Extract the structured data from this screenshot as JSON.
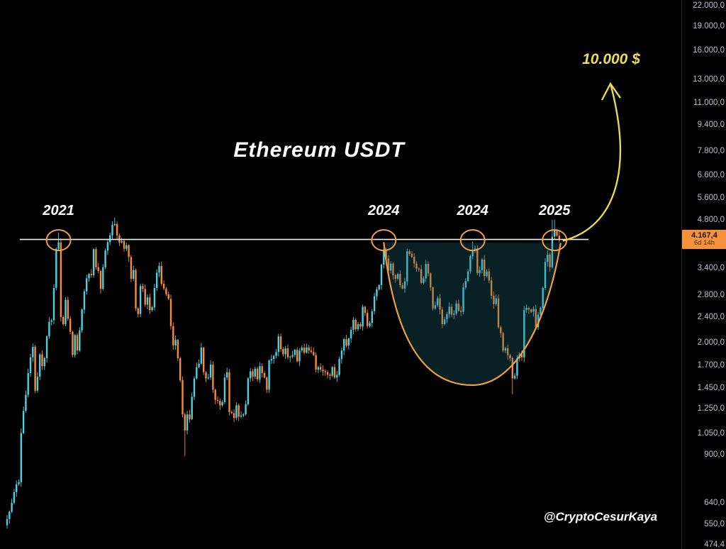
{
  "title": "Ethereum USDT",
  "target_label": "10.000 $",
  "watermark": "@CryptoCesurKaya",
  "price_axis": {
    "ticks": [
      {
        "value": 22000,
        "label": "22.000,0"
      },
      {
        "value": 19000,
        "label": "19.000,0"
      },
      {
        "value": 16000,
        "label": "16.000,0"
      },
      {
        "value": 13000,
        "label": "13.000,0"
      },
      {
        "value": 11000,
        "label": "11.000,0"
      },
      {
        "value": 9400,
        "label": "9.400,0"
      },
      {
        "value": 7800,
        "label": "7.800,0"
      },
      {
        "value": 6600,
        "label": "6.600,0"
      },
      {
        "value": 5600,
        "label": "5.600,0"
      },
      {
        "value": 4800,
        "label": "4.800,0"
      },
      {
        "value": 3400,
        "label": "3.400,0"
      },
      {
        "value": 2800,
        "label": "2.800,0"
      },
      {
        "value": 2400,
        "label": "2.400,0"
      },
      {
        "value": 2000,
        "label": "2.000,0"
      },
      {
        "value": 1700,
        "label": "1.700,0"
      },
      {
        "value": 1450,
        "label": "1.450,0"
      },
      {
        "value": 1250,
        "label": "1.250,0"
      },
      {
        "value": 1050,
        "label": "1.050,0"
      },
      {
        "value": 900,
        "label": "900,0"
      },
      {
        "value": 640,
        "label": "640,0"
      },
      {
        "value": 550,
        "label": "550,0"
      },
      {
        "value": 474.4,
        "label": "474,4"
      }
    ],
    "current": {
      "value": 4167.4,
      "label": "4.167,4",
      "countdown": "6d 14h",
      "bg": "#f7923a"
    }
  },
  "chart_data": {
    "type": "candlestick",
    "title": "Ethereum USDT",
    "scale": "logarithmic",
    "grid": false,
    "y_range": [
      474.4,
      22000
    ],
    "resistance_level": 4167.4,
    "up_color": "#4fd0e0",
    "down_color": "#f78a3c",
    "annotation_color": "#ef9f43",
    "arrow_color": "#e8d94a",
    "line_color": "#f0f0f0",
    "first_open": 545,
    "closes": [
      570,
      600,
      640,
      690,
      730,
      740,
      1050,
      1230,
      1380,
      1610,
      1800,
      1940,
      1420,
      1570,
      1840,
      1690,
      1790,
      2090,
      2320,
      2345,
      2950,
      3900,
      4080,
      2400,
      2280,
      2710,
      2370,
      2160,
      1830,
      2110,
      1890,
      2180,
      2530,
      2880,
      3160,
      3260,
      3230,
      3890,
      3420,
      3330,
      2930,
      3420,
      3850,
      4090,
      4290,
      4620,
      4650,
      4290,
      4080,
      4120,
      3900,
      4000,
      3680,
      3150,
      3350,
      2550,
      2450,
      2990,
      2930,
      2620,
      2760,
      2520,
      2570,
      2950,
      3290,
      3450,
      3040,
      2940,
      2820,
      2730,
      2250,
      1960,
      2040,
      1790,
      1530,
      1200,
      1070,
      1200,
      1160,
      1360,
      1550,
      1680,
      1720,
      1930,
      1620,
      1550,
      1560,
      1710,
      1430,
      1330,
      1320,
      1280,
      1310,
      1560,
      1620,
      1220,
      1210,
      1170,
      1280,
      1180,
      1190,
      1200,
      1290,
      1550,
      1630,
      1570,
      1660,
      1540,
      1690,
      1610,
      1560,
      1430,
      1760,
      1780,
      1820,
      1870,
      2090,
      1910,
      1840,
      1920,
      1800,
      1810,
      1830,
      1900,
      1750,
      1890,
      1930,
      1860,
      1930,
      1890,
      1870,
      1830,
      1650,
      1680,
      1650,
      1630,
      1620,
      1590,
      1580,
      1680,
      1560,
      1590,
      1780,
      1890,
      2050,
      1960,
      2060,
      2190,
      2350,
      2200,
      2280,
      2240,
      2580,
      2470,
      2250,
      2300,
      2500,
      2780,
      2920,
      3010,
      3480,
      3880,
      3640,
      3340,
      3510,
      3230,
      3150,
      3260,
      3010,
      2940,
      3090,
      3830,
      3760,
      3680,
      3510,
      3390,
      3370,
      3060,
      3160,
      3500,
      3270,
      2960,
      2550,
      2610,
      2740,
      2530,
      2280,
      2360,
      2450,
      2580,
      2440,
      2460,
      2640,
      2510,
      2490,
      2960,
      3100,
      3320,
      3700,
      3860,
      3910,
      3280,
      3350,
      3610,
      3210,
      3320,
      3110,
      2790,
      2630,
      2740,
      2230,
      2140,
      1890,
      1920,
      1830,
      1790,
      1550,
      1580,
      1790,
      1840,
      1800,
      2520,
      2560,
      2530,
      2490,
      2540,
      2230,
      2440,
      2560,
      2950,
      3550,
      3740,
      3420,
      4250,
      4450,
      4280,
      4167.4
    ],
    "high_overrides": {
      "22": 4380,
      "46": 4870,
      "161": 4093,
      "199": 4107,
      "233": 4790,
      "234": 4800,
      "236": 4460
    },
    "low_overrides": {
      "76": 890,
      "216": 1385
    },
    "circles": [
      {
        "index": 22,
        "label": "2021"
      },
      {
        "index": 161,
        "label": "2024"
      },
      {
        "index": 199,
        "label": "2024"
      },
      {
        "index": 234,
        "label": "2025"
      }
    ],
    "pattern": {
      "type": "cup",
      "description": "rounded-bottom cup drawn between the 2024 rim and the 2025 rim under the resistance line",
      "left_rim_index": 161,
      "right_rim_index": 236,
      "bottom_price": 1500,
      "fill": "rgba(32,115,130,0.28)"
    },
    "arrow_target": {
      "label": "10.000 $"
    }
  }
}
